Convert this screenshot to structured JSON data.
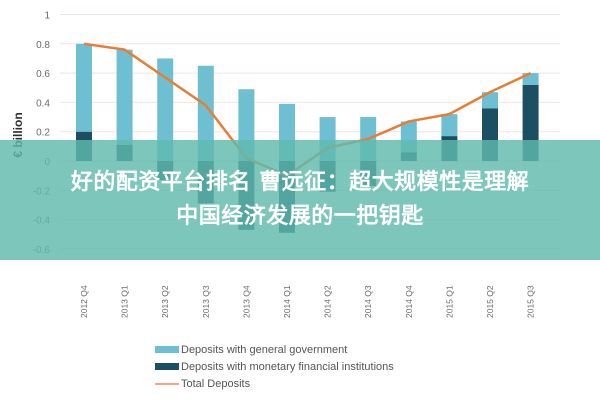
{
  "chart_data": {
    "type": "bar",
    "stacked": true,
    "title": "",
    "xlabel": "",
    "ylabel": "€ billion",
    "ylim": [
      -0.6,
      1.0
    ],
    "yticks": [
      1,
      0.8,
      0.6,
      0.4,
      0.2,
      0,
      -0.2,
      -0.4,
      -0.6
    ],
    "ytick_labels": [
      "1",
      "0.8",
      "0.6",
      "0.4",
      "0.2",
      "0",
      "-0.2",
      "-0.4",
      "-0.6"
    ],
    "grid": true,
    "legend_position": "bottom",
    "categories": [
      "2012 Q4",
      "2013 Q1",
      "2013 Q2",
      "2013 Q3",
      "2013 Q4",
      "2014 Q1",
      "2014 Q2",
      "2014 Q3",
      "2014 Q4",
      "2015 Q1",
      "2015 Q2",
      "2015 Q3"
    ],
    "series": [
      {
        "name": "Deposits with general government",
        "type": "bar",
        "color": "#6fbfd3",
        "values": [
          0.6,
          0.65,
          0.7,
          0.65,
          0.49,
          0.39,
          0.3,
          0.3,
          0.21,
          0.15,
          0.11,
          0.08
        ]
      },
      {
        "name": "Deposits with monetary financial institutions",
        "type": "bar",
        "color": "#1d4f63",
        "values": [
          0.2,
          0.11,
          -0.13,
          -0.29,
          -0.47,
          -0.49,
          -0.21,
          -0.17,
          0.06,
          0.17,
          0.36,
          0.52
        ]
      },
      {
        "name": "Total Deposits",
        "type": "line",
        "color": "#e67e35",
        "values": [
          0.8,
          0.76,
          0.57,
          0.38,
          0.02,
          -0.1,
          0.09,
          0.15,
          0.27,
          0.32,
          0.47,
          0.6
        ]
      }
    ]
  },
  "legend": {
    "items": [
      {
        "label": "Deposits with general government",
        "color": "#6fbfd3",
        "kind": "bar"
      },
      {
        "label": "Deposits with monetary financial institutions",
        "color": "#1d4f63",
        "kind": "bar"
      },
      {
        "label": "Total Deposits",
        "color": "#f0a888",
        "kind": "line"
      }
    ]
  },
  "overlay": {
    "line1": "好的配资平台排名   曹远征：超大规模性是理解",
    "line2": "中国经济发展的一把钥匙"
  }
}
